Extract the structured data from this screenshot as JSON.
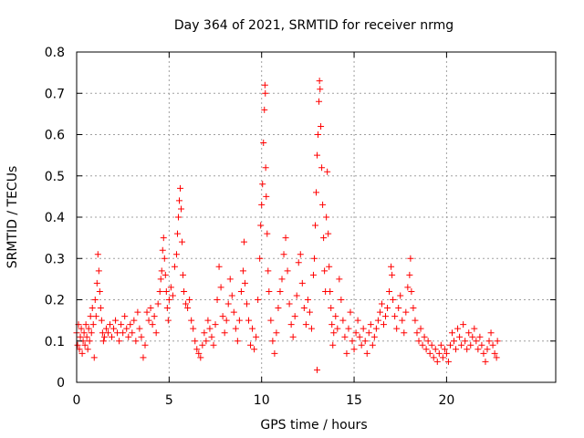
{
  "chart_data": {
    "type": "scatter",
    "title": "Day 364 of 2021, SRMTID for receiver nrmg",
    "xlabel": "GPS time / hours",
    "ylabel": "SRMTID / TECUs",
    "xlim": [
      0,
      25.9
    ],
    "ylim": [
      0,
      0.8
    ],
    "xticks": [
      0,
      5,
      10,
      15,
      20
    ],
    "yticks": [
      0,
      0.1,
      0.2,
      0.3,
      0.4,
      0.5,
      0.6,
      0.7,
      0.8
    ],
    "xtick_labels": [
      "0",
      "5",
      "10",
      "15",
      "20"
    ],
    "ytick_labels": [
      "0",
      "0.1",
      "0.2",
      "0.3",
      "0.4",
      "0.5",
      "0.6",
      "0.7",
      "0.8"
    ],
    "grid": true,
    "marker": "+",
    "color": "#ff0000",
    "series": [
      {
        "name": "SRMTID",
        "points": [
          [
            0.0,
            0.12
          ],
          [
            0.05,
            0.09
          ],
          [
            0.1,
            0.14
          ],
          [
            0.15,
            0.08
          ],
          [
            0.2,
            0.11
          ],
          [
            0.25,
            0.13
          ],
          [
            0.3,
            0.07
          ],
          [
            0.35,
            0.1
          ],
          [
            0.4,
            0.12
          ],
          [
            0.45,
            0.09
          ],
          [
            0.5,
            0.14
          ],
          [
            0.55,
            0.11
          ],
          [
            0.6,
            0.08
          ],
          [
            0.65,
            0.13
          ],
          [
            0.7,
            0.1
          ],
          [
            0.75,
            0.16
          ],
          [
            0.8,
            0.12
          ],
          [
            0.85,
            0.18
          ],
          [
            0.9,
            0.14
          ],
          [
            0.95,
            0.06
          ],
          [
            1.0,
            0.2
          ],
          [
            1.05,
            0.16
          ],
          [
            1.1,
            0.24
          ],
          [
            1.15,
            0.31
          ],
          [
            1.2,
            0.27
          ],
          [
            1.25,
            0.22
          ],
          [
            1.3,
            0.18
          ],
          [
            1.35,
            0.15
          ],
          [
            1.4,
            0.12
          ],
          [
            1.45,
            0.1
          ],
          [
            1.5,
            0.11
          ],
          [
            1.6,
            0.13
          ],
          [
            1.7,
            0.12
          ],
          [
            1.8,
            0.14
          ],
          [
            1.9,
            0.11
          ],
          [
            2.0,
            0.13
          ],
          [
            2.1,
            0.15
          ],
          [
            2.2,
            0.12
          ],
          [
            2.3,
            0.1
          ],
          [
            2.4,
            0.14
          ],
          [
            2.5,
            0.12
          ],
          [
            2.6,
            0.16
          ],
          [
            2.7,
            0.13
          ],
          [
            2.8,
            0.11
          ],
          [
            2.9,
            0.14
          ],
          [
            3.0,
            0.12
          ],
          [
            3.1,
            0.15
          ],
          [
            3.2,
            0.1
          ],
          [
            3.3,
            0.17
          ],
          [
            3.4,
            0.13
          ],
          [
            3.5,
            0.11
          ],
          [
            3.6,
            0.06
          ],
          [
            3.7,
            0.09
          ],
          [
            3.8,
            0.17
          ],
          [
            3.9,
            0.15
          ],
          [
            4.0,
            0.18
          ],
          [
            4.1,
            0.14
          ],
          [
            4.2,
            0.16
          ],
          [
            4.3,
            0.12
          ],
          [
            4.4,
            0.19
          ],
          [
            4.5,
            0.22
          ],
          [
            4.55,
            0.25
          ],
          [
            4.6,
            0.27
          ],
          [
            4.65,
            0.32
          ],
          [
            4.7,
            0.35
          ],
          [
            4.75,
            0.3
          ],
          [
            4.8,
            0.26
          ],
          [
            4.85,
            0.22
          ],
          [
            4.9,
            0.18
          ],
          [
            4.95,
            0.15
          ],
          [
            5.0,
            0.2
          ],
          [
            5.1,
            0.23
          ],
          [
            5.2,
            0.21
          ],
          [
            5.3,
            0.28
          ],
          [
            5.4,
            0.31
          ],
          [
            5.45,
            0.36
          ],
          [
            5.5,
            0.4
          ],
          [
            5.55,
            0.44
          ],
          [
            5.6,
            0.47
          ],
          [
            5.65,
            0.42
          ],
          [
            5.7,
            0.34
          ],
          [
            5.75,
            0.26
          ],
          [
            5.8,
            0.22
          ],
          [
            5.9,
            0.19
          ],
          [
            6.0,
            0.18
          ],
          [
            6.1,
            0.2
          ],
          [
            6.2,
            0.15
          ],
          [
            6.3,
            0.13
          ],
          [
            6.4,
            0.1
          ],
          [
            6.5,
            0.08
          ],
          [
            6.6,
            0.07
          ],
          [
            6.7,
            0.06
          ],
          [
            6.8,
            0.09
          ],
          [
            6.9,
            0.12
          ],
          [
            7.0,
            0.1
          ],
          [
            7.1,
            0.15
          ],
          [
            7.2,
            0.13
          ],
          [
            7.3,
            0.11
          ],
          [
            7.4,
            0.09
          ],
          [
            7.5,
            0.14
          ],
          [
            7.6,
            0.2
          ],
          [
            7.7,
            0.28
          ],
          [
            7.8,
            0.23
          ],
          [
            7.9,
            0.16
          ],
          [
            8.0,
            0.12
          ],
          [
            8.1,
            0.15
          ],
          [
            8.2,
            0.19
          ],
          [
            8.3,
            0.25
          ],
          [
            8.4,
            0.21
          ],
          [
            8.5,
            0.17
          ],
          [
            8.6,
            0.13
          ],
          [
            8.7,
            0.1
          ],
          [
            8.8,
            0.15
          ],
          [
            8.9,
            0.22
          ],
          [
            9.0,
            0.27
          ],
          [
            9.05,
            0.34
          ],
          [
            9.1,
            0.24
          ],
          [
            9.2,
            0.19
          ],
          [
            9.3,
            0.15
          ],
          [
            9.4,
            0.09
          ],
          [
            9.5,
            0.13
          ],
          [
            9.6,
            0.08
          ],
          [
            9.7,
            0.11
          ],
          [
            9.8,
            0.2
          ],
          [
            9.9,
            0.3
          ],
          [
            9.95,
            0.38
          ],
          [
            10.0,
            0.43
          ],
          [
            10.05,
            0.48
          ],
          [
            10.1,
            0.58
          ],
          [
            10.15,
            0.66
          ],
          [
            10.18,
            0.72
          ],
          [
            10.2,
            0.7
          ],
          [
            10.22,
            0.52
          ],
          [
            10.25,
            0.45
          ],
          [
            10.3,
            0.36
          ],
          [
            10.35,
            0.27
          ],
          [
            10.4,
            0.22
          ],
          [
            10.5,
            0.15
          ],
          [
            10.6,
            0.1
          ],
          [
            10.7,
            0.07
          ],
          [
            10.8,
            0.12
          ],
          [
            10.9,
            0.18
          ],
          [
            11.0,
            0.22
          ],
          [
            11.1,
            0.25
          ],
          [
            11.2,
            0.31
          ],
          [
            11.3,
            0.35
          ],
          [
            11.4,
            0.27
          ],
          [
            11.5,
            0.19
          ],
          [
            11.6,
            0.14
          ],
          [
            11.7,
            0.11
          ],
          [
            11.8,
            0.16
          ],
          [
            11.9,
            0.21
          ],
          [
            12.0,
            0.29
          ],
          [
            12.1,
            0.31
          ],
          [
            12.2,
            0.24
          ],
          [
            12.3,
            0.18
          ],
          [
            12.4,
            0.14
          ],
          [
            12.5,
            0.2
          ],
          [
            12.6,
            0.17
          ],
          [
            12.7,
            0.13
          ],
          [
            12.8,
            0.26
          ],
          [
            12.85,
            0.3
          ],
          [
            12.9,
            0.38
          ],
          [
            12.95,
            0.46
          ],
          [
            13.0,
            0.55
          ],
          [
            13.05,
            0.6
          ],
          [
            13.1,
            0.68
          ],
          [
            13.13,
            0.73
          ],
          [
            13.16,
            0.71
          ],
          [
            13.2,
            0.62
          ],
          [
            13.25,
            0.52
          ],
          [
            13.3,
            0.43
          ],
          [
            13.35,
            0.35
          ],
          [
            13.4,
            0.27
          ],
          [
            13.45,
            0.22
          ],
          [
            13.5,
            0.4
          ],
          [
            13.55,
            0.51
          ],
          [
            13.6,
            0.36
          ],
          [
            13.65,
            0.28
          ],
          [
            13.7,
            0.22
          ],
          [
            13.75,
            0.18
          ],
          [
            13.8,
            0.14
          ],
          [
            13.85,
            0.09
          ],
          [
            13.9,
            0.12
          ],
          [
            14.0,
            0.16
          ],
          [
            14.1,
            0.13
          ],
          [
            14.2,
            0.25
          ],
          [
            14.3,
            0.2
          ],
          [
            14.4,
            0.15
          ],
          [
            14.5,
            0.11
          ],
          [
            13.0,
            0.03
          ],
          [
            14.6,
            0.07
          ],
          [
            14.7,
            0.13
          ],
          [
            14.8,
            0.17
          ],
          [
            14.9,
            0.1
          ],
          [
            15.0,
            0.08
          ],
          [
            15.1,
            0.12
          ],
          [
            15.2,
            0.15
          ],
          [
            15.3,
            0.11
          ],
          [
            15.4,
            0.09
          ],
          [
            15.5,
            0.13
          ],
          [
            15.6,
            0.1
          ],
          [
            15.7,
            0.07
          ],
          [
            15.8,
            0.12
          ],
          [
            15.9,
            0.14
          ],
          [
            16.0,
            0.09
          ],
          [
            16.1,
            0.11
          ],
          [
            16.2,
            0.13
          ],
          [
            16.3,
            0.15
          ],
          [
            16.4,
            0.17
          ],
          [
            16.5,
            0.19
          ],
          [
            16.6,
            0.14
          ],
          [
            16.7,
            0.16
          ],
          [
            16.8,
            0.18
          ],
          [
            16.9,
            0.22
          ],
          [
            17.0,
            0.28
          ],
          [
            17.05,
            0.26
          ],
          [
            17.1,
            0.2
          ],
          [
            17.2,
            0.16
          ],
          [
            17.3,
            0.13
          ],
          [
            17.4,
            0.18
          ],
          [
            17.5,
            0.21
          ],
          [
            17.6,
            0.15
          ],
          [
            17.7,
            0.12
          ],
          [
            17.8,
            0.17
          ],
          [
            17.9,
            0.23
          ],
          [
            18.0,
            0.26
          ],
          [
            18.05,
            0.3
          ],
          [
            18.1,
            0.22
          ],
          [
            18.2,
            0.18
          ],
          [
            18.3,
            0.15
          ],
          [
            18.4,
            0.12
          ],
          [
            18.5,
            0.1
          ],
          [
            18.6,
            0.13
          ],
          [
            18.7,
            0.09
          ],
          [
            18.8,
            0.11
          ],
          [
            18.9,
            0.08
          ],
          [
            19.0,
            0.1
          ],
          [
            19.1,
            0.07
          ],
          [
            19.2,
            0.09
          ],
          [
            19.3,
            0.06
          ],
          [
            19.4,
            0.08
          ],
          [
            19.5,
            0.05
          ],
          [
            19.6,
            0.07
          ],
          [
            19.7,
            0.09
          ],
          [
            19.8,
            0.06
          ],
          [
            19.9,
            0.08
          ],
          [
            20.0,
            0.07
          ],
          [
            20.1,
            0.05
          ],
          [
            20.2,
            0.09
          ],
          [
            20.3,
            0.12
          ],
          [
            20.4,
            0.1
          ],
          [
            20.5,
            0.08
          ],
          [
            20.6,
            0.13
          ],
          [
            20.7,
            0.11
          ],
          [
            20.8,
            0.09
          ],
          [
            20.9,
            0.14
          ],
          [
            21.0,
            0.1
          ],
          [
            21.1,
            0.08
          ],
          [
            21.2,
            0.12
          ],
          [
            21.3,
            0.09
          ],
          [
            21.4,
            0.11
          ],
          [
            21.5,
            0.13
          ],
          [
            21.6,
            0.1
          ],
          [
            21.7,
            0.08
          ],
          [
            21.8,
            0.11
          ],
          [
            21.9,
            0.09
          ],
          [
            22.0,
            0.07
          ],
          [
            22.1,
            0.05
          ],
          [
            22.2,
            0.08
          ],
          [
            22.3,
            0.1
          ],
          [
            22.4,
            0.12
          ],
          [
            22.5,
            0.09
          ],
          [
            22.6,
            0.07
          ],
          [
            22.7,
            0.06
          ],
          [
            22.75,
            0.1
          ]
        ]
      }
    ]
  }
}
